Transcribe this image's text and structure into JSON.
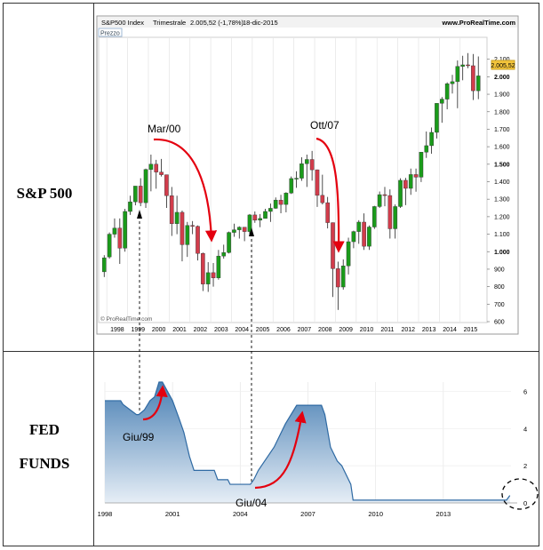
{
  "labels": {
    "sp500": "S&P 500",
    "fed_line1": "FED",
    "fed_line2": "FUNDS"
  },
  "colors": {
    "up": "#1a9b1a",
    "down": "#d23c4b",
    "fed_fill_top": "#4a80b4",
    "fed_fill_bottom": "#e6eef6",
    "fed_line": "#2f6aa3",
    "arrow": "#e4000f"
  },
  "chart_data": [
    {
      "type": "candlestick",
      "header": {
        "name": "S&P500 Index",
        "period": "Trimestrale",
        "value": "2.005,52 (-1,78%)",
        "date": "18-dic-2015",
        "source": "www.ProRealTime.com",
        "panel_label": "Prezzo",
        "copyright": "© ProRealTime.com"
      },
      "current_price_tag": "2.005,52",
      "ylim": [
        600,
        2200
      ],
      "y_ticks": [
        "2.100",
        "2.000",
        "1.900",
        "1.800",
        "1.700",
        "1.600",
        "1.500",
        "1.400",
        "1.300",
        "1.200",
        "1.100",
        "1.000",
        "900",
        "800",
        "700",
        "600"
      ],
      "x_ticks": [
        "1998",
        "1999",
        "2000",
        "2001",
        "2002",
        "2003",
        "2004",
        "2005",
        "2006",
        "2007",
        "2008",
        "2009",
        "2010",
        "2011",
        "2012",
        "2013",
        "2014",
        "2015"
      ],
      "candles": [
        {
          "x": 1997.875,
          "o": 885,
          "h": 980,
          "l": 855,
          "c": 965
        },
        {
          "x": 1998.125,
          "o": 970,
          "h": 1110,
          "l": 960,
          "c": 1100
        },
        {
          "x": 1998.375,
          "o": 1100,
          "h": 1190,
          "l": 1080,
          "c": 1135
        },
        {
          "x": 1998.625,
          "o": 1135,
          "h": 1190,
          "l": 930,
          "c": 1020
        },
        {
          "x": 1998.875,
          "o": 1020,
          "h": 1245,
          "l": 1000,
          "c": 1230
        },
        {
          "x": 1999.125,
          "o": 1230,
          "h": 1320,
          "l": 1210,
          "c": 1285
        },
        {
          "x": 1999.375,
          "o": 1285,
          "h": 1375,
          "l": 1265,
          "c": 1375
        },
        {
          "x": 1999.625,
          "o": 1375,
          "h": 1420,
          "l": 1260,
          "c": 1280
        },
        {
          "x": 1999.875,
          "o": 1280,
          "h": 1475,
          "l": 1250,
          "c": 1470
        },
        {
          "x": 2000.125,
          "o": 1470,
          "h": 1555,
          "l": 1345,
          "c": 1500
        },
        {
          "x": 2000.375,
          "o": 1500,
          "h": 1525,
          "l": 1360,
          "c": 1455
        },
        {
          "x": 2000.625,
          "o": 1455,
          "h": 1530,
          "l": 1430,
          "c": 1440
        },
        {
          "x": 2000.875,
          "o": 1440,
          "h": 1440,
          "l": 1250,
          "c": 1320
        },
        {
          "x": 2001.125,
          "o": 1320,
          "h": 1370,
          "l": 1090,
          "c": 1160
        },
        {
          "x": 2001.375,
          "o": 1160,
          "h": 1320,
          "l": 1100,
          "c": 1225
        },
        {
          "x": 2001.625,
          "o": 1225,
          "h": 1235,
          "l": 945,
          "c": 1040
        },
        {
          "x": 2001.875,
          "o": 1040,
          "h": 1170,
          "l": 970,
          "c": 1150
        },
        {
          "x": 2002.125,
          "o": 1150,
          "h": 1175,
          "l": 1100,
          "c": 1145
        },
        {
          "x": 2002.375,
          "o": 1145,
          "h": 1150,
          "l": 950,
          "c": 990
        },
        {
          "x": 2002.625,
          "o": 990,
          "h": 995,
          "l": 775,
          "c": 815
        },
        {
          "x": 2002.875,
          "o": 815,
          "h": 940,
          "l": 770,
          "c": 880
        },
        {
          "x": 2003.125,
          "o": 880,
          "h": 935,
          "l": 800,
          "c": 850
        },
        {
          "x": 2003.375,
          "o": 850,
          "h": 1010,
          "l": 840,
          "c": 975
        },
        {
          "x": 2003.625,
          "o": 975,
          "h": 1040,
          "l": 960,
          "c": 995
        },
        {
          "x": 2003.875,
          "o": 995,
          "h": 1115,
          "l": 990,
          "c": 1110
        },
        {
          "x": 2004.125,
          "o": 1110,
          "h": 1160,
          "l": 1085,
          "c": 1125
        },
        {
          "x": 2004.375,
          "o": 1125,
          "h": 1145,
          "l": 1075,
          "c": 1140
        },
        {
          "x": 2004.625,
          "o": 1140,
          "h": 1140,
          "l": 1060,
          "c": 1115
        },
        {
          "x": 2004.875,
          "o": 1115,
          "h": 1215,
          "l": 1090,
          "c": 1210
        },
        {
          "x": 2005.125,
          "o": 1210,
          "h": 1230,
          "l": 1165,
          "c": 1180
        },
        {
          "x": 2005.375,
          "o": 1180,
          "h": 1215,
          "l": 1140,
          "c": 1190
        },
        {
          "x": 2005.625,
          "o": 1190,
          "h": 1245,
          "l": 1190,
          "c": 1230
        },
        {
          "x": 2005.875,
          "o": 1230,
          "h": 1275,
          "l": 1170,
          "c": 1248
        },
        {
          "x": 2006.125,
          "o": 1248,
          "h": 1310,
          "l": 1245,
          "c": 1295
        },
        {
          "x": 2006.375,
          "o": 1295,
          "h": 1325,
          "l": 1220,
          "c": 1270
        },
        {
          "x": 2006.625,
          "o": 1270,
          "h": 1340,
          "l": 1225,
          "c": 1335
        },
        {
          "x": 2006.875,
          "o": 1335,
          "h": 1430,
          "l": 1330,
          "c": 1418
        },
        {
          "x": 2007.125,
          "o": 1418,
          "h": 1460,
          "l": 1365,
          "c": 1420
        },
        {
          "x": 2007.375,
          "o": 1420,
          "h": 1540,
          "l": 1405,
          "c": 1503
        },
        {
          "x": 2007.625,
          "o": 1503,
          "h": 1555,
          "l": 1370,
          "c": 1527
        },
        {
          "x": 2007.875,
          "o": 1527,
          "h": 1576,
          "l": 1406,
          "c": 1468
        },
        {
          "x": 2008.125,
          "o": 1468,
          "h": 1470,
          "l": 1256,
          "c": 1322
        },
        {
          "x": 2008.375,
          "o": 1322,
          "h": 1440,
          "l": 1270,
          "c": 1280
        },
        {
          "x": 2008.625,
          "o": 1280,
          "h": 1313,
          "l": 1133,
          "c": 1166
        },
        {
          "x": 2008.875,
          "o": 1166,
          "h": 1167,
          "l": 741,
          "c": 903
        },
        {
          "x": 2009.125,
          "o": 903,
          "h": 943,
          "l": 667,
          "c": 798
        },
        {
          "x": 2009.375,
          "o": 798,
          "h": 956,
          "l": 783,
          "c": 919
        },
        {
          "x": 2009.625,
          "o": 919,
          "h": 1080,
          "l": 870,
          "c": 1057
        },
        {
          "x": 2009.875,
          "o": 1057,
          "h": 1120,
          "l": 1020,
          "c": 1115
        },
        {
          "x": 2010.125,
          "o": 1115,
          "h": 1180,
          "l": 1045,
          "c": 1169
        },
        {
          "x": 2010.375,
          "o": 1169,
          "h": 1219,
          "l": 1010,
          "c": 1031
        },
        {
          "x": 2010.625,
          "o": 1031,
          "h": 1150,
          "l": 1010,
          "c": 1141
        },
        {
          "x": 2010.875,
          "o": 1141,
          "h": 1262,
          "l": 1130,
          "c": 1258
        },
        {
          "x": 2011.125,
          "o": 1258,
          "h": 1344,
          "l": 1250,
          "c": 1326
        },
        {
          "x": 2011.375,
          "o": 1326,
          "h": 1370,
          "l": 1260,
          "c": 1321
        },
        {
          "x": 2011.625,
          "o": 1321,
          "h": 1356,
          "l": 1075,
          "c": 1131
        },
        {
          "x": 2011.875,
          "o": 1131,
          "h": 1270,
          "l": 1075,
          "c": 1258
        },
        {
          "x": 2012.125,
          "o": 1258,
          "h": 1420,
          "l": 1250,
          "c": 1408
        },
        {
          "x": 2012.375,
          "o": 1408,
          "h": 1422,
          "l": 1266,
          "c": 1362
        },
        {
          "x": 2012.625,
          "o": 1362,
          "h": 1475,
          "l": 1325,
          "c": 1441
        },
        {
          "x": 2012.875,
          "o": 1441,
          "h": 1475,
          "l": 1343,
          "c": 1426
        },
        {
          "x": 2013.125,
          "o": 1426,
          "h": 1570,
          "l": 1398,
          "c": 1569
        },
        {
          "x": 2013.375,
          "o": 1569,
          "h": 1687,
          "l": 1536,
          "c": 1606
        },
        {
          "x": 2013.625,
          "o": 1606,
          "h": 1710,
          "l": 1560,
          "c": 1682
        },
        {
          "x": 2013.875,
          "o": 1682,
          "h": 1849,
          "l": 1647,
          "c": 1848
        },
        {
          "x": 2014.125,
          "o": 1848,
          "h": 1884,
          "l": 1737,
          "c": 1872
        },
        {
          "x": 2014.375,
          "o": 1872,
          "h": 1968,
          "l": 1814,
          "c": 1960
        },
        {
          "x": 2014.625,
          "o": 1960,
          "h": 2011,
          "l": 1904,
          "c": 1972
        },
        {
          "x": 2014.875,
          "o": 1972,
          "h": 2093,
          "l": 1820,
          "c": 2059
        },
        {
          "x": 2015.125,
          "o": 2059,
          "h": 2120,
          "l": 1980,
          "c": 2068
        },
        {
          "x": 2015.375,
          "o": 2068,
          "h": 2135,
          "l": 2049,
          "c": 2063
        },
        {
          "x": 2015.625,
          "o": 2063,
          "h": 2130,
          "l": 1867,
          "c": 1920
        },
        {
          "x": 2015.875,
          "o": 1920,
          "h": 2116,
          "l": 1872,
          "c": 2005
        }
      ],
      "annotations": [
        {
          "text": "Mar/00"
        },
        {
          "text": "Ott/07"
        }
      ]
    },
    {
      "type": "area",
      "ylim": [
        0,
        6.5
      ],
      "y_ticks": [
        "6",
        "4",
        "2",
        "0"
      ],
      "x_ticks": [
        "1998",
        "2001",
        "2004",
        "2007",
        "2010",
        "2013"
      ],
      "x": [
        1998.0,
        1998.7,
        1998.8,
        1999.4,
        1999.5,
        1999.75,
        2000.0,
        2000.2,
        2000.4,
        2000.55,
        2001.0,
        2001.3,
        2001.5,
        2001.75,
        2001.95,
        2002.85,
        2003.0,
        2003.45,
        2003.55,
        2004.45,
        2004.6,
        2004.8,
        2005.5,
        2006.0,
        2006.5,
        2006.6,
        2007.6,
        2007.75,
        2008.0,
        2008.3,
        2008.5,
        2008.9,
        2009.0,
        2015.8,
        2015.95
      ],
      "y": [
        5.5,
        5.5,
        5.3,
        4.75,
        4.75,
        5.0,
        5.5,
        5.7,
        6.5,
        6.5,
        5.5,
        4.5,
        3.8,
        2.5,
        1.75,
        1.75,
        1.25,
        1.25,
        1.0,
        1.0,
        1.25,
        1.75,
        3.0,
        4.25,
        5.25,
        5.25,
        5.25,
        4.75,
        3.0,
        2.25,
        2.0,
        1.0,
        0.15,
        0.15,
        0.4
      ],
      "annotations": [
        {
          "text": "Giu/99"
        },
        {
          "text": "Giu/04"
        }
      ]
    }
  ]
}
